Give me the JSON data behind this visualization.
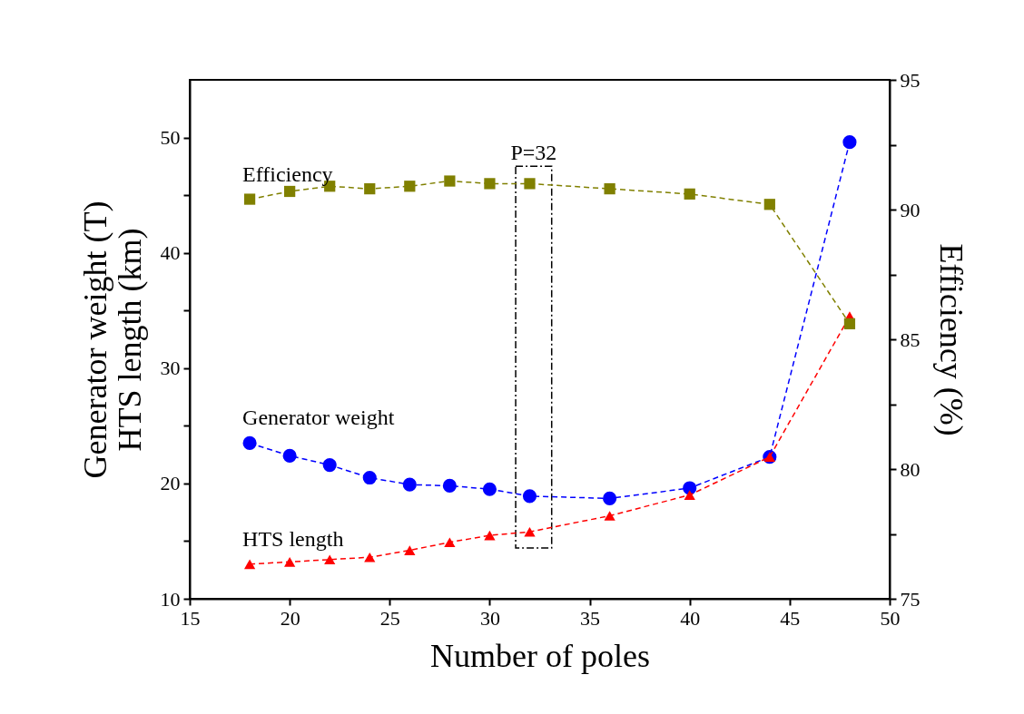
{
  "chart_data": {
    "type": "line",
    "xlabel": "Number of poles",
    "ylabel": "Generator weight (T)\nHTS length (km)",
    "y2label": "Efficiency (%)",
    "xlim": [
      15,
      50
    ],
    "xticks": [
      15,
      20,
      25,
      30,
      35,
      40,
      45,
      50
    ],
    "ylim": [
      10,
      55
    ],
    "yticks": [
      10,
      {
        "value": 15,
        "label": null
      },
      20,
      {
        "value": 25,
        "label": null
      },
      30,
      {
        "value": 35,
        "label": null
      },
      40,
      {
        "value": 45,
        "label": null
      },
      50
    ],
    "y2lim": [
      75,
      95
    ],
    "y2ticks": [
      75,
      {
        "value": 77.5,
        "label": null
      },
      80,
      {
        "value": 82.5,
        "label": null
      },
      85,
      {
        "value": 87.5,
        "label": null
      },
      90,
      {
        "value": 92.5,
        "label": null
      },
      95
    ],
    "x": [
      18,
      20,
      22,
      24,
      26,
      28,
      30,
      32,
      36,
      40,
      44,
      48
    ],
    "series": [
      {
        "name": "Efficiency",
        "color": "#808000",
        "axis": "y2",
        "marker": "square",
        "values": [
          90.4,
          90.7,
          90.9,
          90.8,
          90.9,
          91.1,
          91.0,
          91.0,
          90.8,
          90.6,
          90.2,
          85.6
        ]
      },
      {
        "name": "Generator weight",
        "color": "#0000ff",
        "marker": "circle",
        "values": [
          23.5,
          22.4,
          21.6,
          20.5,
          19.9,
          19.8,
          19.5,
          18.9,
          18.7,
          19.6,
          22.3,
          49.6
        ]
      },
      {
        "name": "HTS length",
        "color": "#ff0000",
        "marker": "triangle",
        "values": [
          13.0,
          13.2,
          13.4,
          13.6,
          14.2,
          14.9,
          15.5,
          15.8,
          17.2,
          19.0,
          22.3,
          34.5
        ]
      }
    ],
    "bands": [
      {
        "axis": "x",
        "from": 31.3,
        "to": 33.1,
        "label": "P=32",
        "color": "#ffffff"
      }
    ],
    "line_style": "dashed",
    "grid": false
  }
}
